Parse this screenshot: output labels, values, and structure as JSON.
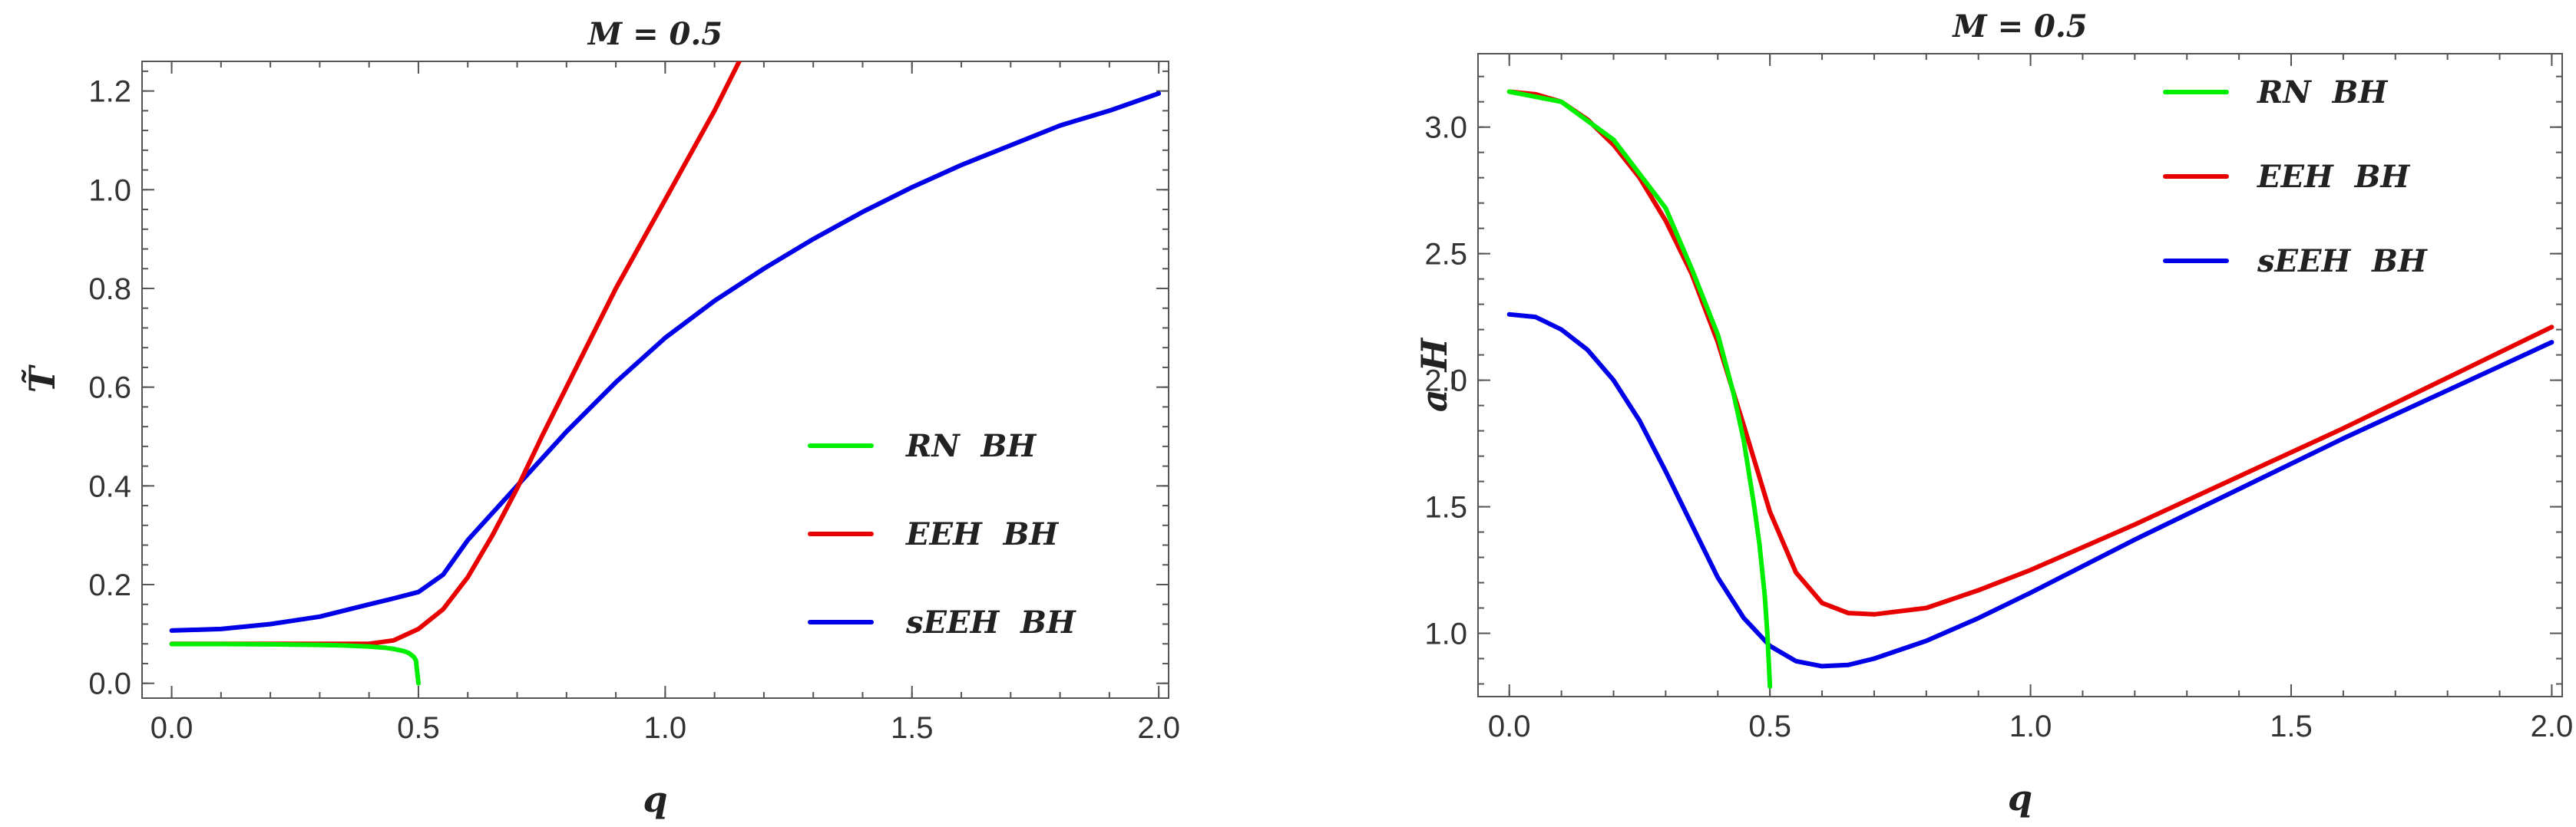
{
  "chart_data": [
    {
      "type": "line",
      "title": "M = 0.5",
      "xlabel": "q",
      "ylabel": "T̃",
      "xlim": [
        -0.06,
        2.02
      ],
      "ylim": [
        -0.03,
        1.26
      ],
      "xticks": [
        0.0,
        0.5,
        1.0,
        1.5,
        2.0
      ],
      "xtick_labels": [
        "0.0",
        "0.5",
        "1.0",
        "1.5",
        "2.0"
      ],
      "yticks": [
        0.0,
        0.2,
        0.4,
        0.6,
        0.8,
        1.0,
        1.2
      ],
      "ytick_labels": [
        "0.0",
        "0.2",
        "0.4",
        "0.6",
        "0.8",
        "1.0",
        "1.2"
      ],
      "grid": false,
      "legend_position": "center-right",
      "series": [
        {
          "name": "RN  BH",
          "color": "#00ee00",
          "x": [
            0.0,
            0.1,
            0.2,
            0.3,
            0.35,
            0.4,
            0.43,
            0.45,
            0.47,
            0.48,
            0.49,
            0.495,
            0.5
          ],
          "y": [
            0.0796,
            0.0795,
            0.079,
            0.0778,
            0.0766,
            0.0746,
            0.0723,
            0.0697,
            0.0653,
            0.0616,
            0.0543,
            0.0464,
            0.0
          ]
        },
        {
          "name": "EEH  BH",
          "color": "#e80000",
          "x": [
            0.0,
            0.1,
            0.2,
            0.3,
            0.4,
            0.45,
            0.5,
            0.55,
            0.6,
            0.65,
            0.7,
            0.75,
            0.8,
            0.85,
            0.9,
            0.95,
            1.0,
            1.05,
            1.1,
            1.15
          ],
          "y": [
            0.08,
            0.08,
            0.08,
            0.08,
            0.08,
            0.087,
            0.11,
            0.15,
            0.215,
            0.3,
            0.395,
            0.5,
            0.6,
            0.7,
            0.8,
            0.89,
            0.98,
            1.07,
            1.16,
            1.26
          ]
        },
        {
          "name": "sEEH  BH",
          "color": "#0000e8",
          "x": [
            0.0,
            0.1,
            0.2,
            0.3,
            0.4,
            0.45,
            0.5,
            0.55,
            0.6,
            0.7,
            0.8,
            0.9,
            1.0,
            1.1,
            1.2,
            1.3,
            1.4,
            1.5,
            1.6,
            1.7,
            1.8,
            1.9,
            2.0
          ],
          "y": [
            0.107,
            0.11,
            0.12,
            0.135,
            0.16,
            0.172,
            0.185,
            0.22,
            0.29,
            0.4,
            0.51,
            0.61,
            0.7,
            0.775,
            0.84,
            0.9,
            0.955,
            1.005,
            1.05,
            1.09,
            1.13,
            1.16,
            1.195
          ]
        }
      ]
    },
    {
      "type": "line",
      "title": "M = 0.5",
      "xlabel": "q",
      "ylabel": "a_H",
      "xlim": [
        -0.06,
        2.02
      ],
      "ylim": [
        0.75,
        3.29
      ],
      "xticks": [
        0.0,
        0.5,
        1.0,
        1.5,
        2.0
      ],
      "xtick_labels": [
        "0.0",
        "0.5",
        "1.0",
        "1.5",
        "2.0"
      ],
      "yticks": [
        1.0,
        1.5,
        2.0,
        2.5,
        3.0
      ],
      "ytick_labels": [
        "1.0",
        "1.5",
        "2.0",
        "2.5",
        "3.0"
      ],
      "grid": false,
      "legend_position": "top-right",
      "series": [
        {
          "name": "RN  BH",
          "color": "#00ee00",
          "x": [
            0.0,
            0.1,
            0.2,
            0.3,
            0.35,
            0.4,
            0.43,
            0.45,
            0.47,
            0.48,
            0.49,
            0.495,
            0.5
          ],
          "y": [
            3.14,
            3.1,
            2.95,
            2.68,
            2.44,
            2.18,
            1.95,
            1.76,
            1.5,
            1.35,
            1.15,
            1.0,
            0.79
          ]
        },
        {
          "name": "EEH  BH",
          "color": "#e80000",
          "x": [
            0.0,
            0.05,
            0.1,
            0.15,
            0.2,
            0.25,
            0.3,
            0.35,
            0.4,
            0.45,
            0.5,
            0.55,
            0.6,
            0.65,
            0.7,
            0.8,
            0.9,
            1.0,
            1.2,
            1.4,
            1.6,
            1.8,
            2.0
          ],
          "y": [
            3.14,
            3.13,
            3.1,
            3.03,
            2.93,
            2.8,
            2.63,
            2.42,
            2.15,
            1.82,
            1.48,
            1.24,
            1.12,
            1.08,
            1.075,
            1.1,
            1.17,
            1.25,
            1.43,
            1.62,
            1.81,
            2.01,
            2.21
          ]
        },
        {
          "name": "sEEH  BH",
          "color": "#0000e8",
          "x": [
            0.0,
            0.05,
            0.1,
            0.15,
            0.2,
            0.25,
            0.3,
            0.35,
            0.4,
            0.45,
            0.5,
            0.55,
            0.6,
            0.65,
            0.7,
            0.8,
            0.9,
            1.0,
            1.2,
            1.4,
            1.6,
            1.8,
            2.0
          ],
          "y": [
            2.26,
            2.25,
            2.2,
            2.12,
            2.0,
            1.84,
            1.64,
            1.43,
            1.22,
            1.06,
            0.95,
            0.89,
            0.87,
            0.875,
            0.9,
            0.97,
            1.06,
            1.16,
            1.37,
            1.57,
            1.77,
            1.96,
            2.15
          ]
        }
      ]
    }
  ]
}
